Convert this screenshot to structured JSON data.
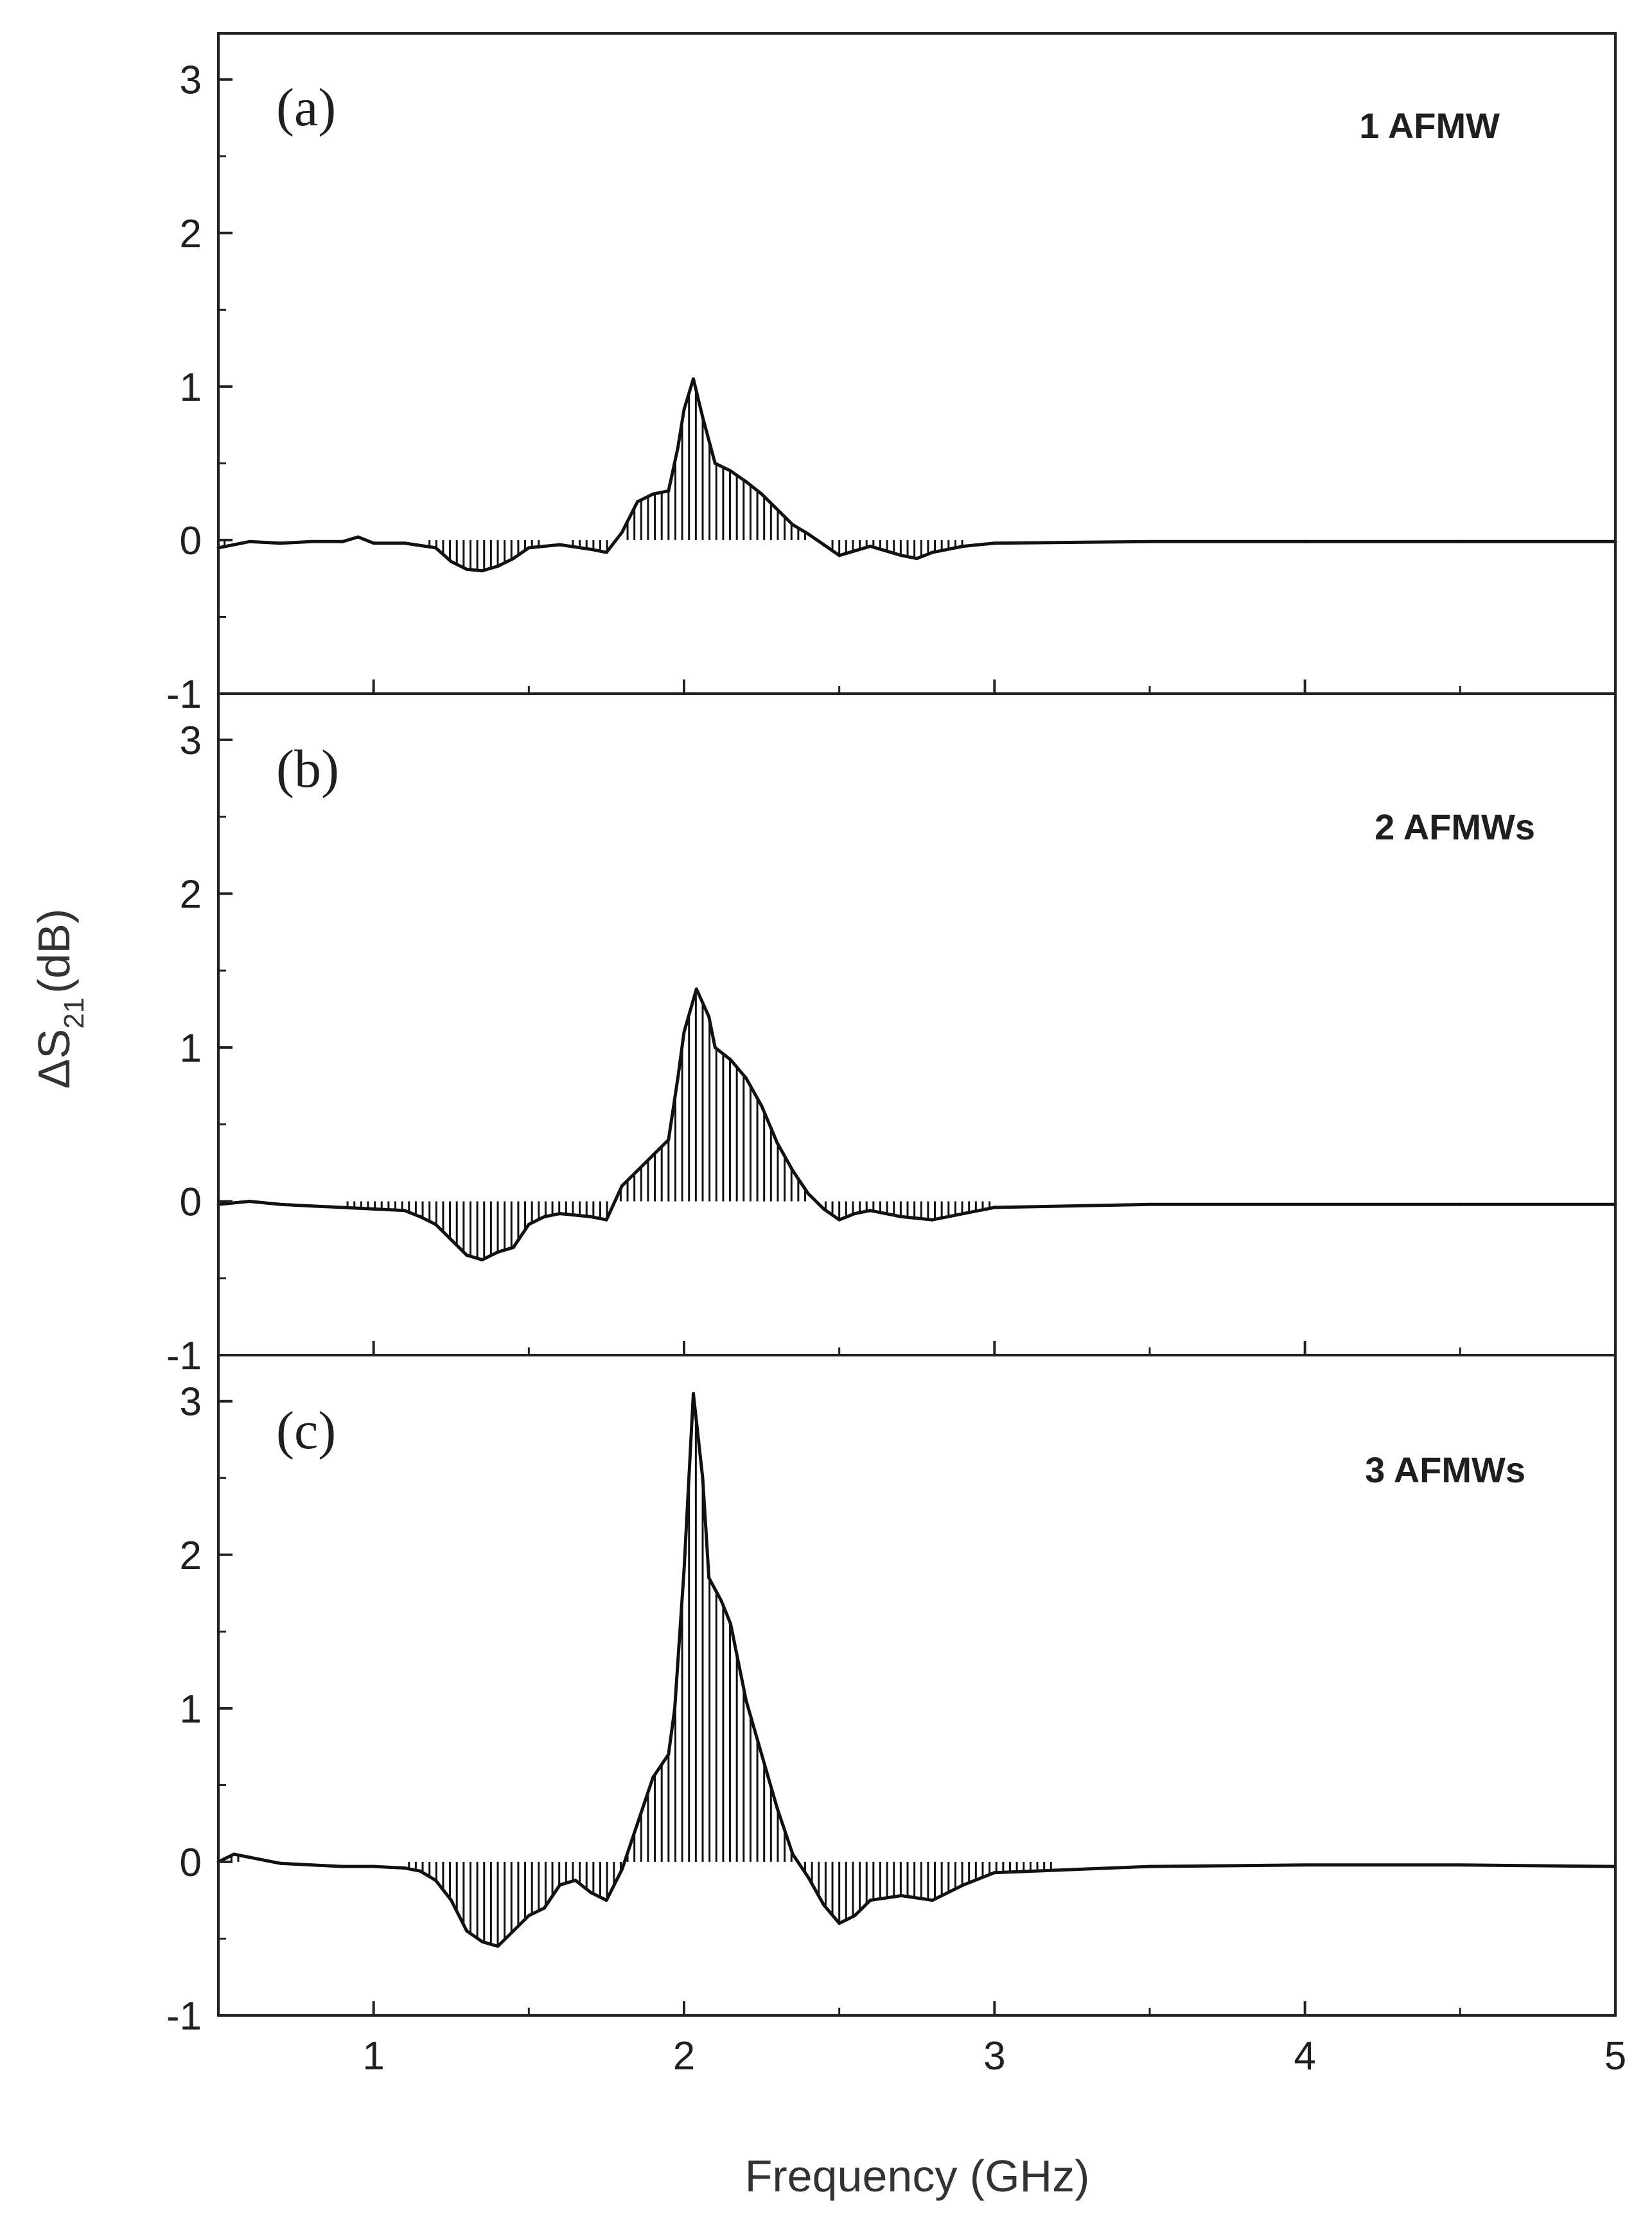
{
  "chart_data": {
    "type": "line",
    "fill": "hatched vertical lines between curve and zero",
    "xlabel": "Frequency (GHz)",
    "ylabel": {
      "prefix": "ΔS",
      "subscript": "21",
      "suffix": "(dB)"
    },
    "xlim": [
      0.5,
      5
    ],
    "ylim": [
      -1,
      3.3
    ],
    "x_ticks": [
      1,
      2,
      3,
      4,
      5
    ],
    "x_tick_labels": [
      "1",
      "2",
      "3",
      "4",
      "5"
    ],
    "y_ticks": [
      -1,
      0,
      1,
      2,
      3
    ],
    "y_tick_labels": [
      "-1",
      "0",
      "1",
      "2",
      "3"
    ],
    "panels": [
      {
        "label": "(a)",
        "series_name": "1 AFMW",
        "points": [
          [
            0.5,
            -0.05
          ],
          [
            0.6,
            -0.01
          ],
          [
            0.7,
            -0.02
          ],
          [
            0.8,
            -0.01
          ],
          [
            0.9,
            -0.01
          ],
          [
            0.95,
            0.02
          ],
          [
            1.0,
            -0.02
          ],
          [
            1.1,
            -0.02
          ],
          [
            1.2,
            -0.05
          ],
          [
            1.25,
            -0.14
          ],
          [
            1.3,
            -0.19
          ],
          [
            1.35,
            -0.2
          ],
          [
            1.4,
            -0.17
          ],
          [
            1.45,
            -0.12
          ],
          [
            1.5,
            -0.05
          ],
          [
            1.6,
            -0.03
          ],
          [
            1.7,
            -0.06
          ],
          [
            1.75,
            -0.08
          ],
          [
            1.8,
            0.05
          ],
          [
            1.85,
            0.25
          ],
          [
            1.9,
            0.3
          ],
          [
            1.95,
            0.32
          ],
          [
            1.98,
            0.6
          ],
          [
            2.0,
            0.85
          ],
          [
            2.03,
            1.05
          ],
          [
            2.06,
            0.8
          ],
          [
            2.1,
            0.5
          ],
          [
            2.15,
            0.45
          ],
          [
            2.2,
            0.38
          ],
          [
            2.25,
            0.3
          ],
          [
            2.3,
            0.2
          ],
          [
            2.35,
            0.1
          ],
          [
            2.4,
            0.04
          ],
          [
            2.45,
            -0.03
          ],
          [
            2.5,
            -0.1
          ],
          [
            2.55,
            -0.07
          ],
          [
            2.6,
            -0.04
          ],
          [
            2.65,
            -0.07
          ],
          [
            2.7,
            -0.1
          ],
          [
            2.75,
            -0.12
          ],
          [
            2.8,
            -0.08
          ],
          [
            2.9,
            -0.04
          ],
          [
            3.0,
            -0.02
          ],
          [
            3.5,
            -0.01
          ],
          [
            4.0,
            -0.01
          ],
          [
            4.5,
            -0.01
          ],
          [
            5.0,
            -0.01
          ]
        ]
      },
      {
        "label": "(b)",
        "series_name": "2 AFMWs",
        "points": [
          [
            0.5,
            -0.02
          ],
          [
            0.6,
            0.0
          ],
          [
            0.7,
            -0.02
          ],
          [
            0.8,
            -0.03
          ],
          [
            0.9,
            -0.04
          ],
          [
            1.0,
            -0.05
          ],
          [
            1.1,
            -0.06
          ],
          [
            1.15,
            -0.1
          ],
          [
            1.2,
            -0.15
          ],
          [
            1.25,
            -0.25
          ],
          [
            1.3,
            -0.35
          ],
          [
            1.35,
            -0.38
          ],
          [
            1.4,
            -0.33
          ],
          [
            1.45,
            -0.3
          ],
          [
            1.5,
            -0.15
          ],
          [
            1.55,
            -0.1
          ],
          [
            1.6,
            -0.08
          ],
          [
            1.7,
            -0.1
          ],
          [
            1.75,
            -0.12
          ],
          [
            1.8,
            0.1
          ],
          [
            1.85,
            0.2
          ],
          [
            1.9,
            0.3
          ],
          [
            1.95,
            0.4
          ],
          [
            1.98,
            0.8
          ],
          [
            2.0,
            1.1
          ],
          [
            2.04,
            1.38
          ],
          [
            2.08,
            1.2
          ],
          [
            2.1,
            1.0
          ],
          [
            2.15,
            0.92
          ],
          [
            2.2,
            0.8
          ],
          [
            2.25,
            0.62
          ],
          [
            2.3,
            0.38
          ],
          [
            2.35,
            0.2
          ],
          [
            2.4,
            0.05
          ],
          [
            2.45,
            -0.05
          ],
          [
            2.5,
            -0.12
          ],
          [
            2.55,
            -0.08
          ],
          [
            2.6,
            -0.06
          ],
          [
            2.7,
            -0.1
          ],
          [
            2.8,
            -0.12
          ],
          [
            2.9,
            -0.08
          ],
          [
            3.0,
            -0.04
          ],
          [
            3.5,
            -0.02
          ],
          [
            4.0,
            -0.02
          ],
          [
            4.5,
            -0.02
          ],
          [
            5.0,
            -0.02
          ]
        ]
      },
      {
        "label": "(c)",
        "series_name": "3 AFMWs",
        "points": [
          [
            0.5,
            0.0
          ],
          [
            0.55,
            0.05
          ],
          [
            0.6,
            0.03
          ],
          [
            0.7,
            -0.01
          ],
          [
            0.8,
            -0.02
          ],
          [
            0.9,
            -0.03
          ],
          [
            1.0,
            -0.03
          ],
          [
            1.1,
            -0.04
          ],
          [
            1.15,
            -0.06
          ],
          [
            1.2,
            -0.12
          ],
          [
            1.25,
            -0.25
          ],
          [
            1.3,
            -0.45
          ],
          [
            1.35,
            -0.52
          ],
          [
            1.4,
            -0.55
          ],
          [
            1.45,
            -0.45
          ],
          [
            1.5,
            -0.35
          ],
          [
            1.55,
            -0.3
          ],
          [
            1.6,
            -0.15
          ],
          [
            1.65,
            -0.12
          ],
          [
            1.7,
            -0.2
          ],
          [
            1.75,
            -0.25
          ],
          [
            1.8,
            -0.05
          ],
          [
            1.85,
            0.25
          ],
          [
            1.9,
            0.55
          ],
          [
            1.95,
            0.7
          ],
          [
            1.97,
            1.0
          ],
          [
            2.0,
            1.9
          ],
          [
            2.03,
            3.05
          ],
          [
            2.06,
            2.5
          ],
          [
            2.08,
            1.85
          ],
          [
            2.12,
            1.7
          ],
          [
            2.15,
            1.55
          ],
          [
            2.2,
            1.05
          ],
          [
            2.25,
            0.7
          ],
          [
            2.3,
            0.35
          ],
          [
            2.35,
            0.05
          ],
          [
            2.4,
            -0.1
          ],
          [
            2.45,
            -0.28
          ],
          [
            2.5,
            -0.4
          ],
          [
            2.55,
            -0.35
          ],
          [
            2.6,
            -0.25
          ],
          [
            2.7,
            -0.22
          ],
          [
            2.8,
            -0.25
          ],
          [
            2.9,
            -0.15
          ],
          [
            3.0,
            -0.07
          ],
          [
            3.5,
            -0.03
          ],
          [
            4.0,
            -0.02
          ],
          [
            4.5,
            -0.02
          ],
          [
            5.0,
            -0.03
          ]
        ]
      }
    ]
  }
}
